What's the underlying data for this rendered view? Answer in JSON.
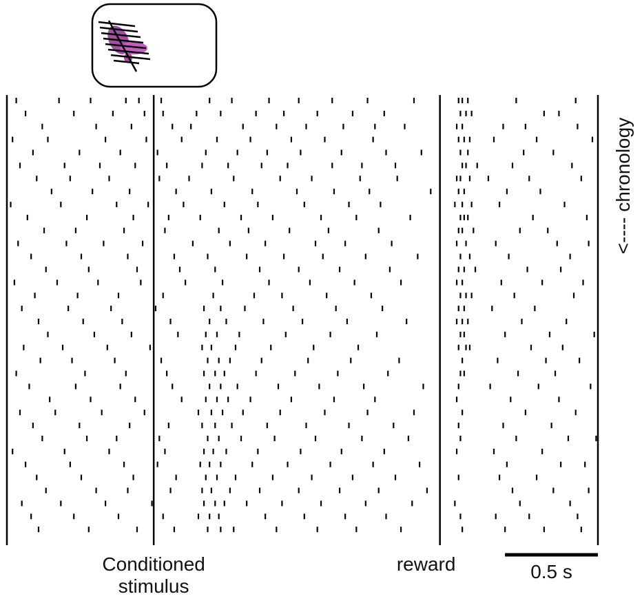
{
  "chart_data": {
    "type": "raster",
    "xlim": [
      -0.79,
      2.39
    ],
    "events": [
      {
        "label": "Conditioned stimulus",
        "time": 0
      },
      {
        "label": "reward",
        "time": 1.54
      }
    ],
    "scale_bar": {
      "length": 0.5,
      "label": "0.5 s"
    },
    "y_label": "<---- chronology",
    "color": "#000000",
    "trials": [
      [
        -0.74,
        -0.51,
        -0.34,
        -0.15,
        -0.08,
        0.04,
        0.3,
        0.42,
        0.62,
        0.78,
        0.96,
        1.15,
        1.4,
        1.64,
        1.66,
        1.69,
        1.95,
        2.27
      ],
      [
        -0.69,
        -0.43,
        -0.22,
        -0.05,
        0.05,
        0.23,
        0.36,
        0.55,
        0.7,
        0.88,
        1.07,
        1.24,
        1.65,
        1.68,
        1.71,
        2.1,
        2.18
      ],
      [
        -0.6,
        -0.31,
        -0.12,
        0.1,
        0.2,
        0.48,
        0.66,
        0.82,
        1.02,
        1.19,
        1.35,
        1.63,
        1.66,
        1.88,
        2.0,
        2.28
      ],
      [
        -0.76,
        -0.57,
        -0.26,
        -0.04,
        0.15,
        0.34,
        0.52,
        0.74,
        0.92,
        1.18,
        1.64,
        1.67,
        1.7,
        1.83,
        2.06,
        2.36
      ],
      [
        -0.65,
        -0.4,
        -0.18,
        0.02,
        0.28,
        0.45,
        0.61,
        0.79,
        1.01,
        1.25,
        1.44,
        1.65,
        1.69,
        1.99,
        2.15
      ],
      [
        -0.72,
        -0.48,
        -0.29,
        -0.1,
        0.07,
        0.26,
        0.4,
        0.58,
        0.72,
        0.96,
        1.12,
        1.3,
        1.66,
        1.68,
        1.74,
        1.93,
        2.25
      ],
      [
        -0.63,
        -0.45,
        -0.24,
        0.03,
        0.19,
        0.43,
        0.68,
        0.85,
        1.11,
        1.31,
        1.63,
        1.65,
        1.7,
        1.8,
        2.02,
        2.3
      ],
      [
        -0.55,
        -0.33,
        -0.13,
        0.12,
        0.31,
        0.53,
        0.77,
        0.97,
        1.16,
        1.49,
        1.64,
        1.67,
        1.9,
        2.08
      ],
      [
        -0.77,
        -0.5,
        -0.2,
        -0.03,
        0.16,
        0.38,
        0.56,
        0.81,
        1.05,
        1.22,
        1.62,
        1.66,
        1.71,
        1.86,
        2.21
      ],
      [
        -0.68,
        -0.36,
        -0.11,
        0.08,
        0.25,
        0.47,
        0.64,
        0.9,
        1.09,
        1.38,
        1.65,
        1.67,
        1.69,
        2.04,
        2.33
      ],
      [
        -0.59,
        -0.42,
        -0.16,
        0.06,
        0.35,
        0.51,
        0.73,
        0.94,
        1.21,
        1.64,
        1.66,
        1.72,
        1.97,
        2.12
      ],
      [
        -0.73,
        -0.47,
        -0.27,
        -0.06,
        0.21,
        0.41,
        0.6,
        0.87,
        1.03,
        1.28,
        1.63,
        1.68,
        1.84,
        2.17,
        2.34
      ],
      [
        -0.66,
        -0.39,
        -0.14,
        0.11,
        0.29,
        0.5,
        0.7,
        0.91,
        1.14,
        1.42,
        1.65,
        1.7,
        1.91,
        2.24
      ],
      [
        -0.58,
        -0.35,
        -0.09,
        0.14,
        0.33,
        0.57,
        0.78,
        1.0,
        1.27,
        1.64,
        1.67,
        1.73,
        2.01,
        2.19
      ],
      [
        -0.75,
        -0.52,
        -0.3,
        -0.07,
        0.17,
        0.37,
        0.62,
        0.84,
        1.08,
        1.33,
        1.63,
        1.66,
        1.87,
        2.09,
        2.31
      ],
      [
        -0.64,
        -0.41,
        -0.19,
        0.05,
        0.32,
        0.54,
        0.69,
        0.93,
        1.17,
        1.65,
        1.68,
        1.71,
        1.94,
        2.26
      ],
      [
        -0.71,
        -0.46,
        -0.23,
        0.01,
        0.27,
        0.36,
        0.49,
        0.75,
        0.98,
        1.23,
        1.64,
        1.67,
        1.82,
        2.05
      ],
      [
        -0.62,
        -0.38,
        -0.17,
        0.09,
        0.3,
        0.39,
        0.59,
        0.8,
        1.04,
        1.36,
        1.63,
        1.66,
        1.69,
        1.98,
        2.22
      ],
      [
        -0.57,
        -0.32,
        -0.12,
        0.13,
        0.28,
        0.34,
        0.46,
        0.71,
        0.95,
        1.2,
        1.65,
        1.67,
        1.89,
        2.13,
        2.37
      ],
      [
        -0.7,
        -0.49,
        -0.25,
        -0.02,
        0.26,
        0.31,
        0.44,
        0.63,
        0.86,
        1.1,
        1.64,
        1.68,
        1.7,
        2.03,
        2.2
      ],
      [
        -0.61,
        -0.44,
        -0.21,
        0.04,
        0.29,
        0.35,
        0.41,
        0.58,
        0.83,
        1.06,
        1.32,
        1.66,
        1.85,
        2.11,
        2.29
      ],
      [
        -0.74,
        -0.37,
        -0.15,
        0.07,
        0.27,
        0.33,
        0.38,
        0.55,
        0.76,
        0.99,
        1.26,
        1.65,
        1.67,
        1.96,
        2.16
      ],
      [
        -0.67,
        -0.42,
        -0.18,
        0.1,
        0.3,
        0.36,
        0.45,
        0.67,
        0.89,
        1.13,
        1.45,
        1.64,
        1.81,
        2.07,
        2.35
      ],
      [
        -0.56,
        -0.34,
        -0.1,
        0.15,
        0.28,
        0.34,
        0.4,
        0.52,
        0.74,
        0.97,
        1.19,
        1.63,
        1.92,
        2.18
      ],
      [
        -0.72,
        -0.53,
        -0.28,
        -0.05,
        0.24,
        0.31,
        0.37,
        0.48,
        0.68,
        0.92,
        1.15,
        1.4,
        1.66,
        2.0,
        2.27
      ],
      [
        -0.65,
        -0.4,
        -0.13,
        0.08,
        0.26,
        0.33,
        0.42,
        0.61,
        0.82,
        1.05,
        1.29,
        1.64,
        1.88,
        2.14
      ],
      [
        -0.6,
        -0.36,
        -0.2,
        0.03,
        0.29,
        0.35,
        0.47,
        0.65,
        0.87,
        1.12,
        1.37,
        1.65,
        1.95,
        2.23,
        2.38
      ],
      [
        -0.76,
        -0.48,
        -0.24,
        0.06,
        0.27,
        0.32,
        0.39,
        0.56,
        0.79,
        1.01,
        1.24,
        1.63,
        1.83,
        2.09
      ],
      [
        -0.69,
        -0.45,
        -0.16,
        0.02,
        0.25,
        0.3,
        0.36,
        0.53,
        0.72,
        0.95,
        1.18,
        1.43,
        1.9,
        2.19,
        2.32
      ],
      [
        -0.63,
        -0.39,
        -0.11,
        0.12,
        0.28,
        0.34,
        0.44,
        0.64,
        0.85,
        1.07,
        1.3,
        1.64,
        1.86,
        2.06
      ],
      [
        -0.58,
        -0.31,
        -0.14,
        0.09,
        0.26,
        0.31,
        0.41,
        0.57,
        0.78,
        1.0,
        1.21,
        1.47,
        1.93,
        2.15,
        2.34
      ],
      [
        -0.71,
        -0.5,
        -0.26,
        -0.01,
        0.27,
        0.33,
        0.38,
        0.5,
        0.69,
        0.9,
        1.14,
        1.39,
        1.62,
        1.97,
        2.24
      ],
      [
        -0.66,
        -0.43,
        -0.19,
        0.05,
        0.24,
        0.3,
        0.35,
        0.6,
        0.81,
        1.03,
        1.25,
        1.65,
        1.84,
        2.02,
        2.28
      ],
      [
        -0.62,
        -0.35,
        -0.09,
        0.11,
        0.29,
        0.36,
        0.43,
        0.66,
        0.88,
        1.09,
        1.33,
        1.66,
        1.89,
        2.1,
        2.3
      ]
    ]
  }
}
